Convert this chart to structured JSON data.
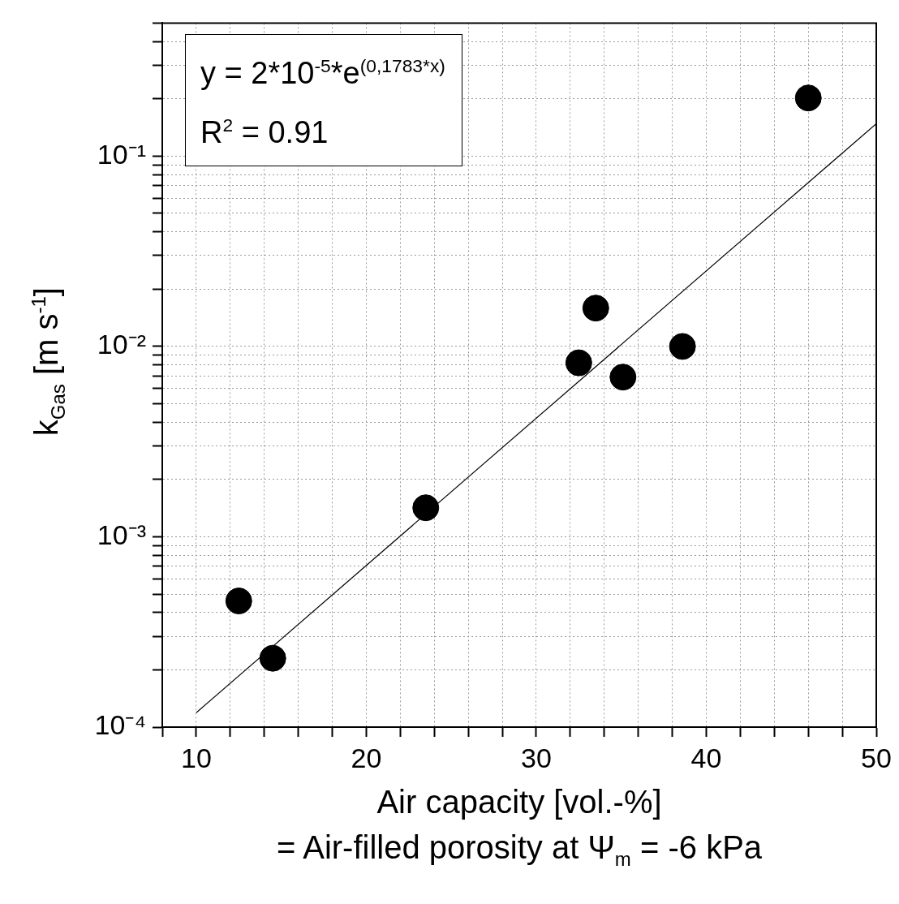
{
  "chart_data": {
    "type": "scatter",
    "xlabel": "Air capacity [vol.-%]\n= Air-filled porosity at Ψ$_{m}$ = -6 kPa",
    "ylabel": "k$_{Gas}$ [m s$^{-1}$]",
    "annotations": [
      "y = 2*10$^{-5}$*e$^{(0,1783*x)}$",
      "R$^{2}$ = 0.91"
    ],
    "x": [
      12.5,
      14.5,
      23.5,
      32.5,
      33.5,
      35.1,
      38.6,
      46
    ],
    "series": [
      {
        "marker": "circle",
        "color": "#000000",
        "values": [
          0.00046,
          0.00023,
          0.00142,
          0.0082,
          0.0159,
          0.0069,
          0.01,
          0.202
        ]
      },
      {
        "type": "line",
        "color": "#000000",
        "x": [
          10,
          50
        ],
        "values": [
          0.000119,
          0.148
        ]
      }
    ],
    "log": "y",
    "xlim": [
      8,
      50
    ],
    "ylim": [
      0.0001,
      0.5
    ],
    "xticks": [
      {
        "value": 8,
        "label": null
      },
      10,
      {
        "value": 12,
        "label": null
      },
      {
        "value": 14,
        "label": null
      },
      {
        "value": 16,
        "label": null
      },
      {
        "value": 18,
        "label": null
      },
      20,
      {
        "value": 22,
        "label": null
      },
      {
        "value": 24,
        "label": null
      },
      {
        "value": 26,
        "label": null
      },
      {
        "value": 28,
        "label": null
      },
      30,
      {
        "value": 32,
        "label": null
      },
      {
        "value": 34,
        "label": null
      },
      {
        "value": 36,
        "label": null
      },
      {
        "value": 38,
        "label": null
      },
      40,
      {
        "value": 42,
        "label": null
      },
      {
        "value": 44,
        "label": null
      },
      {
        "value": 46,
        "label": null
      },
      {
        "value": 48,
        "label": null
      },
      50
    ],
    "yticks": [
      {
        "value": 0.0001,
        "label": "10⁻⁴"
      },
      {
        "value": 0.0002,
        "label": null
      },
      {
        "value": 0.0003,
        "label": null
      },
      {
        "value": 0.0004,
        "label": null
      },
      {
        "value": 0.0005,
        "label": null
      },
      {
        "value": 0.0006,
        "label": null
      },
      {
        "value": 0.0007,
        "label": null
      },
      {
        "value": 0.0008,
        "label": null
      },
      {
        "value": 0.0009,
        "label": null
      },
      {
        "value": 0.001,
        "label": "10⁻³"
      },
      {
        "value": 0.002,
        "label": null
      },
      {
        "value": 0.003,
        "label": null
      },
      {
        "value": 0.004,
        "label": null
      },
      {
        "value": 0.005,
        "label": null
      },
      {
        "value": 0.006,
        "label": null
      },
      {
        "value": 0.007,
        "label": null
      },
      {
        "value": 0.008,
        "label": null
      },
      {
        "value": 0.009,
        "label": null
      },
      {
        "value": 0.01,
        "label": "10⁻²"
      },
      {
        "value": 0.02,
        "label": null
      },
      {
        "value": 0.03,
        "label": null
      },
      {
        "value": 0.04,
        "label": null
      },
      {
        "value": 0.05,
        "label": null
      },
      {
        "value": 0.06,
        "label": null
      },
      {
        "value": 0.07,
        "label": null
      },
      {
        "value": 0.08,
        "label": null
      },
      {
        "value": 0.09,
        "label": null
      },
      {
        "value": 0.1,
        "label": "10⁻¹"
      },
      {
        "value": 0.2,
        "label": null
      },
      {
        "value": 0.3,
        "label": null
      },
      {
        "value": 0.4,
        "label": null
      },
      {
        "value": 0.5,
        "label": null
      }
    ],
    "grid": true,
    "legend": false,
    "line_style": "solid"
  }
}
